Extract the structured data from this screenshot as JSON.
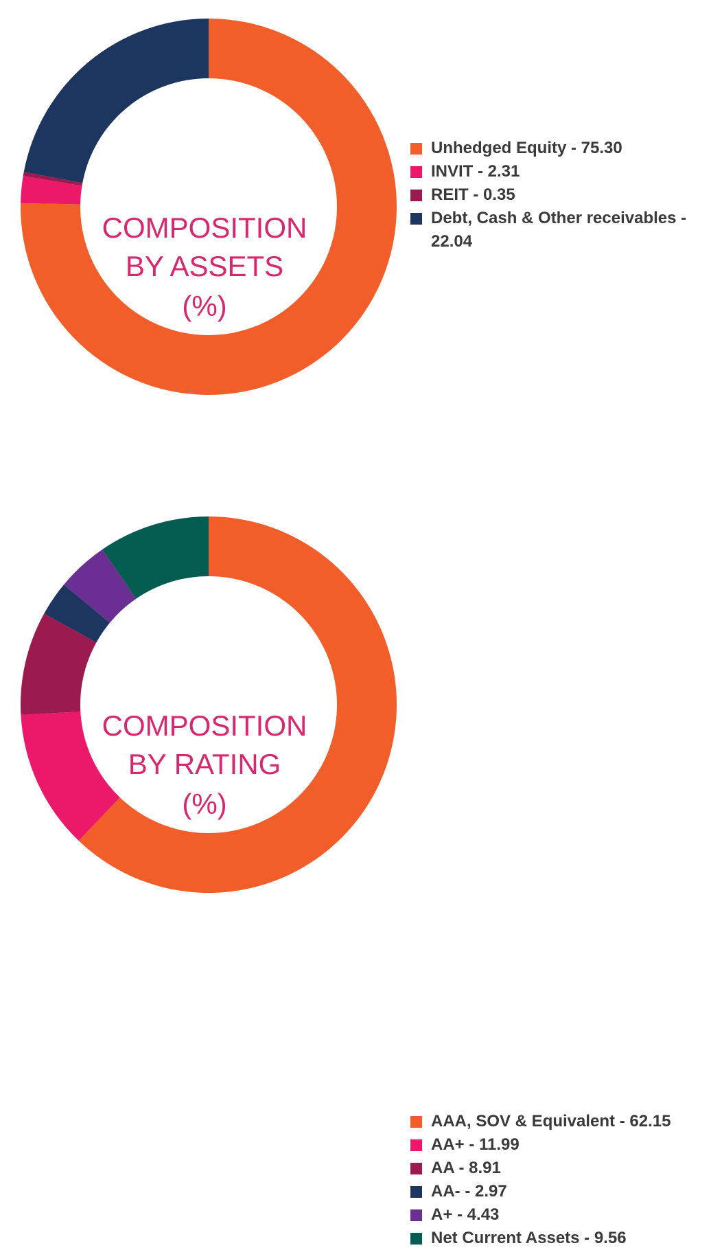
{
  "chart_data": [
    {
      "type": "pie",
      "variant": "donut",
      "center_label": [
        "COMPOSITION",
        "BY ASSETS",
        "(%)"
      ],
      "slices": [
        {
          "label": "Unhedged Equity",
          "value": 75.3,
          "color": "#f15e2a",
          "legend_text": "Unhedged Equity - 75.30"
        },
        {
          "label": "INVIT",
          "value": 2.31,
          "color": "#ec1869",
          "legend_text": "INVIT - 2.31"
        },
        {
          "label": "REIT",
          "value": 0.35,
          "color": "#9b1b4f",
          "legend_text": "REIT - 0.35"
        },
        {
          "label": "Debt, Cash & Other receivables",
          "value": 22.04,
          "color": "#1c3660",
          "legend_text": "Debt, Cash & Other receivables - 22.04"
        }
      ],
      "legend_position": "right"
    },
    {
      "type": "pie",
      "variant": "donut",
      "center_label": [
        "COMPOSITION",
        "BY RATING",
        "(%)"
      ],
      "slices": [
        {
          "label": "AAA, SOV & Equivalent",
          "value": 62.15,
          "color": "#f15e2a",
          "legend_text": "AAA, SOV & Equivalent - 62.15"
        },
        {
          "label": "AA+",
          "value": 11.99,
          "color": "#ec1869",
          "legend_text": "AA+ - 11.99"
        },
        {
          "label": "AA",
          "value": 8.91,
          "color": "#9b1b4f",
          "legend_text": "AA - 8.91"
        },
        {
          "label": "AA-",
          "value": 2.97,
          "color": "#1c3660",
          "legend_text": "AA- - 2.97"
        },
        {
          "label": "A+",
          "value": 4.43,
          "color": "#6b2f93",
          "legend_text": "A+ - 4.43"
        },
        {
          "label": "Net Current Assets",
          "value": 9.56,
          "color": "#055c50",
          "legend_text": "Net Current Assets - 9.56"
        }
      ],
      "legend_position": "right"
    }
  ]
}
